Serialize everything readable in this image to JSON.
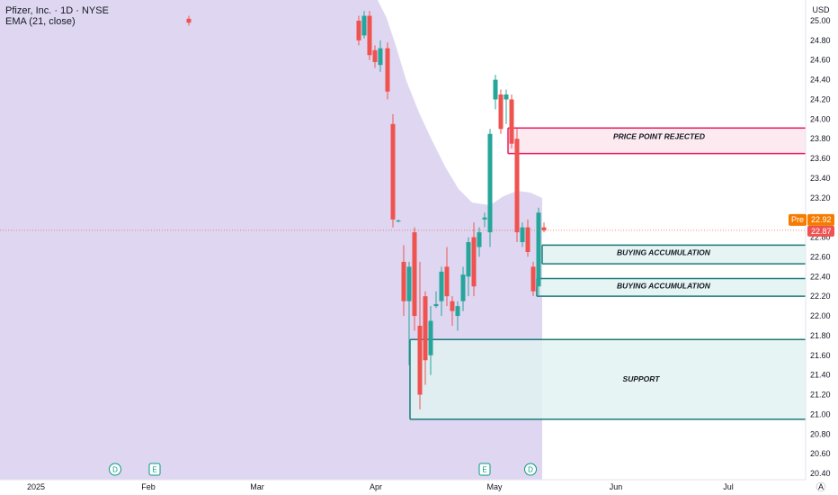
{
  "header": {
    "symbol_line": "Pfizer, Inc. · 1D · NYSE",
    "indicator_line": "EMA (21, close)"
  },
  "currency": "USD",
  "price_tags": {
    "pre_label": "Pre",
    "pre_value": "22.92",
    "last_value": "22.87"
  },
  "footer_icon": "auto-scale-icon",
  "colors": {
    "up": "#26a69a",
    "down": "#ef5350",
    "ema_fill": "#d9d0ef",
    "rejected": "#e91e63",
    "teal": "#1b7a78",
    "pre_tag": "#f57c00"
  },
  "chart_data": {
    "type": "candlestick",
    "ylim": [
      20.35,
      25.1
    ],
    "y_ticks": [
      "25.00",
      "24.80",
      "24.60",
      "24.40",
      "24.20",
      "24.00",
      "23.80",
      "23.60",
      "23.40",
      "23.20",
      "23.00",
      "22.80",
      "22.60",
      "22.40",
      "22.20",
      "22.00",
      "21.80",
      "21.60",
      "21.40",
      "21.20",
      "21.00",
      "20.80",
      "20.60",
      "20.40"
    ],
    "x_ticks": [
      "2025",
      "Feb",
      "Mar",
      "Apr",
      "May",
      "Jun",
      "Jul"
    ],
    "candles": [
      {
        "o": 25.02,
        "h": 25.05,
        "l": 24.95,
        "c": 24.98
      },
      {
        "o": 25.0,
        "h": 25.05,
        "l": 24.75,
        "c": 24.8
      },
      {
        "o": 24.85,
        "h": 25.1,
        "l": 24.82,
        "c": 25.05
      },
      {
        "o": 25.05,
        "h": 25.1,
        "l": 24.6,
        "c": 24.65
      },
      {
        "o": 24.7,
        "h": 24.75,
        "l": 24.52,
        "c": 24.58
      },
      {
        "o": 24.55,
        "h": 24.8,
        "l": 24.48,
        "c": 24.72
      },
      {
        "o": 24.72,
        "h": 24.78,
        "l": 24.2,
        "c": 24.28
      },
      {
        "o": 23.95,
        "h": 24.05,
        "l": 22.9,
        "c": 22.98
      },
      {
        "o": 22.96,
        "h": 22.98,
        "l": 22.95,
        "c": 22.97
      },
      {
        "o": 22.55,
        "h": 22.72,
        "l": 22.0,
        "c": 22.15
      },
      {
        "o": 22.15,
        "h": 22.55,
        "l": 21.5,
        "c": 22.5
      },
      {
        "o": 22.85,
        "h": 22.9,
        "l": 21.85,
        "c": 22.0
      },
      {
        "o": 21.9,
        "h": 22.55,
        "l": 21.05,
        "c": 21.2
      },
      {
        "o": 22.2,
        "h": 22.25,
        "l": 21.3,
        "c": 21.55
      },
      {
        "o": 21.6,
        "h": 22.1,
        "l": 21.4,
        "c": 21.95
      },
      {
        "o": 22.1,
        "h": 22.25,
        "l": 22.08,
        "c": 22.12
      },
      {
        "o": 22.15,
        "h": 22.5,
        "l": 22.0,
        "c": 22.45
      },
      {
        "o": 22.5,
        "h": 22.7,
        "l": 22.1,
        "c": 22.2
      },
      {
        "o": 22.15,
        "h": 22.2,
        "l": 21.9,
        "c": 22.05
      },
      {
        "o": 22.0,
        "h": 22.15,
        "l": 21.85,
        "c": 22.1
      },
      {
        "o": 22.15,
        "h": 22.5,
        "l": 22.05,
        "c": 22.42
      },
      {
        "o": 22.4,
        "h": 22.8,
        "l": 22.2,
        "c": 22.75
      },
      {
        "o": 22.8,
        "h": 22.95,
        "l": 22.2,
        "c": 22.3
      },
      {
        "o": 22.7,
        "h": 22.9,
        "l": 22.6,
        "c": 22.85
      },
      {
        "o": 22.98,
        "h": 23.05,
        "l": 22.9,
        "c": 23.0
      },
      {
        "o": 22.85,
        "h": 23.9,
        "l": 22.7,
        "c": 23.85
      },
      {
        "o": 24.2,
        "h": 24.45,
        "l": 24.1,
        "c": 24.4
      },
      {
        "o": 24.25,
        "h": 24.3,
        "l": 23.85,
        "c": 23.9
      },
      {
        "o": 24.2,
        "h": 24.3,
        "l": 23.95,
        "c": 24.25
      },
      {
        "o": 24.2,
        "h": 24.25,
        "l": 23.7,
        "c": 23.75
      },
      {
        "o": 23.8,
        "h": 23.9,
        "l": 22.75,
        "c": 22.85
      },
      {
        "o": 22.75,
        "h": 22.95,
        "l": 22.7,
        "c": 22.9
      },
      {
        "o": 22.9,
        "h": 22.98,
        "l": 22.6,
        "c": 22.65
      },
      {
        "o": 22.5,
        "h": 22.55,
        "l": 22.2,
        "c": 22.25
      },
      {
        "o": 22.3,
        "h": 23.1,
        "l": 22.2,
        "c": 23.05
      },
      {
        "o": 22.9,
        "h": 22.95,
        "l": 22.85,
        "c": 22.87
      }
    ],
    "ema_visible": true,
    "zones": [
      {
        "label": "PRICE POINT REJECTED",
        "from": 23.65,
        "to": 23.91,
        "color": "rejected"
      },
      {
        "label": "BUYING ACCUMULATION",
        "from": 22.53,
        "to": 22.72,
        "color": "teal"
      },
      {
        "label": "BUYING ACCUMULATION",
        "from": 22.2,
        "to": 22.38,
        "color": "teal"
      },
      {
        "label": "SUPPORT",
        "from": 20.95,
        "to": 21.76,
        "color": "teal"
      }
    ],
    "event_markers": [
      {
        "label": "D",
        "series": "dividend"
      },
      {
        "label": "E",
        "series": "earnings"
      },
      {
        "label": "E",
        "series": "earnings"
      },
      {
        "label": "D",
        "series": "dividend"
      }
    ]
  }
}
